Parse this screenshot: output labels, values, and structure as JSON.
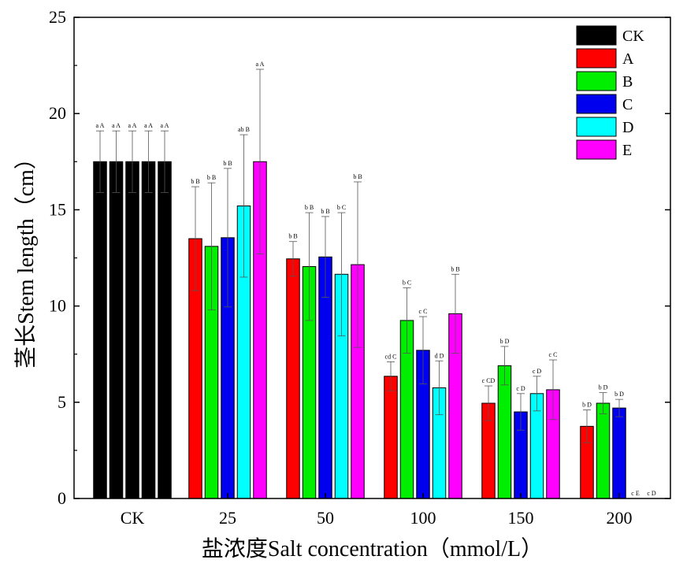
{
  "chart_data": {
    "type": "bar",
    "xlabel": "盐浓度Salt concentration（mmol/L）",
    "ylabel": "茎长Stem length（cm）",
    "ylim": [
      0,
      25
    ],
    "yticks": [
      "0",
      "5",
      "10",
      "15",
      "20",
      "25"
    ],
    "categories": [
      "CK",
      "25",
      "50",
      "100",
      "150",
      "200"
    ],
    "legend_position": "top-right",
    "legend": [
      "CK",
      "A",
      "B",
      "C",
      "D",
      "E"
    ],
    "colors": {
      "CK": "#000000",
      "A": "#ff0000",
      "B": "#00ee00",
      "C": "#0000ee",
      "D": "#00ffff",
      "E": "#ff00ff"
    },
    "groups": [
      {
        "category": "CK",
        "bars": [
          {
            "series": "CK",
            "value": 17.5,
            "error": 1.6,
            "label": "a A"
          },
          {
            "series": "CK",
            "value": 17.5,
            "error": 1.6,
            "label": "a A"
          },
          {
            "series": "CK",
            "value": 17.5,
            "error": 1.6,
            "label": "a A"
          },
          {
            "series": "CK",
            "value": 17.5,
            "error": 1.6,
            "label": "a A"
          },
          {
            "series": "CK",
            "value": 17.5,
            "error": 1.6,
            "label": "a A"
          }
        ]
      },
      {
        "category": "25",
        "bars": [
          {
            "series": "A",
            "value": 13.5,
            "error": 2.7,
            "label": "b B"
          },
          {
            "series": "B",
            "value": 13.1,
            "error": 3.3,
            "label": "b B"
          },
          {
            "series": "C",
            "value": 13.55,
            "error": 3.6,
            "label": "b B"
          },
          {
            "series": "D",
            "value": 15.2,
            "error": 3.7,
            "label": "ab B"
          },
          {
            "series": "E",
            "value": 17.5,
            "error": 4.8,
            "label": "a A"
          }
        ]
      },
      {
        "category": "50",
        "bars": [
          {
            "series": "A",
            "value": 12.45,
            "error": 0.9,
            "label": "b B"
          },
          {
            "series": "B",
            "value": 12.05,
            "error": 2.8,
            "label": "b B"
          },
          {
            "series": "C",
            "value": 12.55,
            "error": 2.1,
            "label": "b B"
          },
          {
            "series": "D",
            "value": 11.65,
            "error": 3.2,
            "label": "b C"
          },
          {
            "series": "E",
            "value": 12.15,
            "error": 4.3,
            "label": "b B"
          }
        ]
      },
      {
        "category": "100",
        "bars": [
          {
            "series": "A",
            "value": 6.35,
            "error": 0.75,
            "label": "cd C"
          },
          {
            "series": "B",
            "value": 9.25,
            "error": 1.7,
            "label": "b C"
          },
          {
            "series": "C",
            "value": 7.7,
            "error": 1.75,
            "label": "c C"
          },
          {
            "series": "D",
            "value": 5.75,
            "error": 1.4,
            "label": "d D"
          },
          {
            "series": "E",
            "value": 9.6,
            "error": 2.05,
            "label": "b B"
          }
        ]
      },
      {
        "category": "150",
        "bars": [
          {
            "series": "A",
            "value": 4.95,
            "error": 0.9,
            "label": "c CD"
          },
          {
            "series": "B",
            "value": 6.9,
            "error": 1.0,
            "label": "b D"
          },
          {
            "series": "C",
            "value": 4.5,
            "error": 0.95,
            "label": "c D"
          },
          {
            "series": "D",
            "value": 5.45,
            "error": 0.9,
            "label": "c D"
          },
          {
            "series": "E",
            "value": 5.65,
            "error": 1.55,
            "label": "c C"
          }
        ]
      },
      {
        "category": "200",
        "bars": [
          {
            "series": "A",
            "value": 3.75,
            "error": 0.85,
            "label": "b D"
          },
          {
            "series": "B",
            "value": 4.95,
            "error": 0.55,
            "label": "b D"
          },
          {
            "series": "C",
            "value": 4.7,
            "error": 0.45,
            "label": "b D"
          },
          {
            "series": "D",
            "value": 0,
            "error": 0,
            "label": "c E"
          },
          {
            "series": "E",
            "value": 0,
            "error": 0,
            "label": "c D"
          }
        ]
      }
    ]
  }
}
